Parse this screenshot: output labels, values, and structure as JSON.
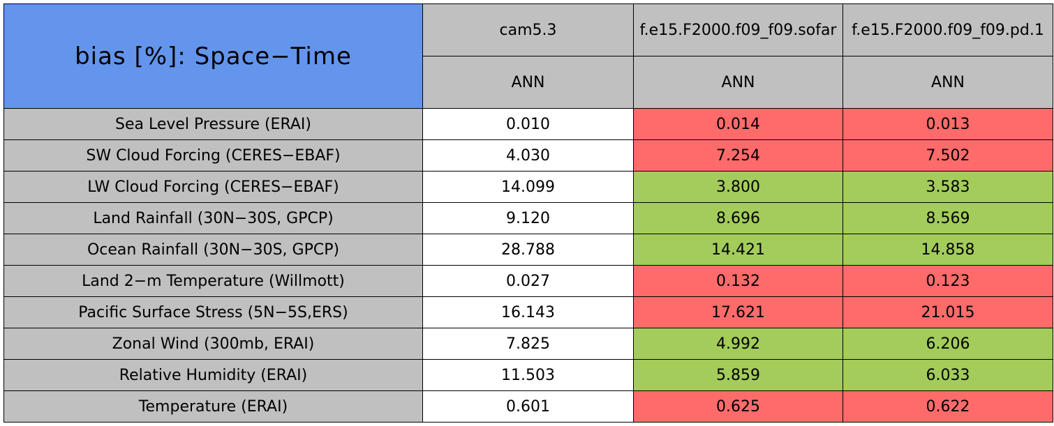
{
  "table": {
    "title": "bias [%]: Space−Time",
    "title_color": "#6495ed",
    "header_color": "#c0c0c0",
    "columns": [
      "cam5.3",
      "f.e15.F2000.f09_f09.sofar",
      "f.e15.F2000.f09_f09.pd.1"
    ],
    "seasons": [
      "ANN",
      "ANN",
      "ANN"
    ],
    "rows": [
      {
        "label": "Sea Level Pressure (ERAI)",
        "values": [
          "0.010",
          "0.014",
          "0.013"
        ],
        "colors": [
          "#ffffff",
          "#ff6b6b",
          "#ff6b6b"
        ]
      },
      {
        "label": "SW Cloud Forcing (CERES−EBAF)",
        "values": [
          "4.030",
          "7.254",
          "7.502"
        ],
        "colors": [
          "#ffffff",
          "#ff6b6b",
          "#ff6b6b"
        ]
      },
      {
        "label": "LW Cloud Forcing (CERES−EBAF)",
        "values": [
          "14.099",
          "3.800",
          "3.583"
        ],
        "colors": [
          "#ffffff",
          "#a3cc5b",
          "#a3cc5b"
        ]
      },
      {
        "label": "Land Rainfall (30N−30S, GPCP)",
        "values": [
          "9.120",
          "8.696",
          "8.569"
        ],
        "colors": [
          "#ffffff",
          "#a3cc5b",
          "#a3cc5b"
        ]
      },
      {
        "label": "Ocean Rainfall (30N−30S, GPCP)",
        "values": [
          "28.788",
          "14.421",
          "14.858"
        ],
        "colors": [
          "#ffffff",
          "#a3cc5b",
          "#a3cc5b"
        ]
      },
      {
        "label": "Land 2−m Temperature (Willmott)",
        "values": [
          "0.027",
          "0.132",
          "0.123"
        ],
        "colors": [
          "#ffffff",
          "#ff6b6b",
          "#ff6b6b"
        ]
      },
      {
        "label": "Pacific Surface Stress (5N−5S,ERS)",
        "values": [
          "16.143",
          "17.621",
          "21.015"
        ],
        "colors": [
          "#ffffff",
          "#ff6b6b",
          "#ff6b6b"
        ]
      },
      {
        "label": "Zonal Wind (300mb, ERAI)",
        "values": [
          "7.825",
          "4.992",
          "6.206"
        ],
        "colors": [
          "#ffffff",
          "#a3cc5b",
          "#a3cc5b"
        ]
      },
      {
        "label": "Relative Humidity (ERAI)",
        "values": [
          "11.503",
          "5.859",
          "6.033"
        ],
        "colors": [
          "#ffffff",
          "#a3cc5b",
          "#a3cc5b"
        ]
      },
      {
        "label": "Temperature (ERAI)",
        "values": [
          "0.601",
          "0.625",
          "0.622"
        ],
        "colors": [
          "#ffffff",
          "#ff6b6b",
          "#ff6b6b"
        ]
      }
    ]
  }
}
